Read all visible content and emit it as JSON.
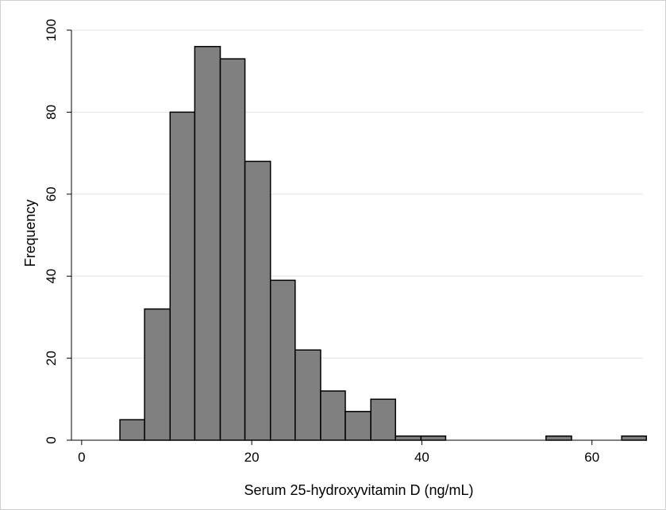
{
  "chart_data": {
    "type": "bar",
    "subtype": "histogram",
    "title": "",
    "xlabel": "Serum 25-hydroxyvitamin D (ng/mL)",
    "ylabel": "Frequency",
    "xlim": [
      -1.2,
      66
    ],
    "ylim": [
      0,
      100
    ],
    "xticks": [
      0,
      20,
      40,
      60
    ],
    "yticks": [
      0,
      20,
      40,
      60,
      80,
      100
    ],
    "grid": "horizontal",
    "legend": "none",
    "bar_fill": "#808080",
    "bar_edge": "#000000",
    "background": "#ffffff",
    "bins": [
      {
        "x0": 4.5,
        "x1": 7.4,
        "value": 5
      },
      {
        "x0": 7.4,
        "x1": 10.4,
        "value": 32
      },
      {
        "x0": 10.4,
        "x1": 13.3,
        "value": 80
      },
      {
        "x0": 13.3,
        "x1": 16.3,
        "value": 96
      },
      {
        "x0": 16.3,
        "x1": 19.2,
        "value": 93
      },
      {
        "x0": 19.2,
        "x1": 22.2,
        "value": 68
      },
      {
        "x0": 22.2,
        "x1": 25.1,
        "value": 39
      },
      {
        "x0": 25.1,
        "x1": 28.1,
        "value": 22
      },
      {
        "x0": 28.1,
        "x1": 31.0,
        "value": 12
      },
      {
        "x0": 31.0,
        "x1": 34.0,
        "value": 7
      },
      {
        "x0": 34.0,
        "x1": 36.9,
        "value": 10
      },
      {
        "x0": 36.9,
        "x1": 39.9,
        "value": 1
      },
      {
        "x0": 39.9,
        "x1": 42.8,
        "value": 1
      },
      {
        "x0": 54.6,
        "x1": 57.6,
        "value": 1
      },
      {
        "x0": 63.5,
        "x1": 66.4,
        "value": 1
      }
    ]
  }
}
